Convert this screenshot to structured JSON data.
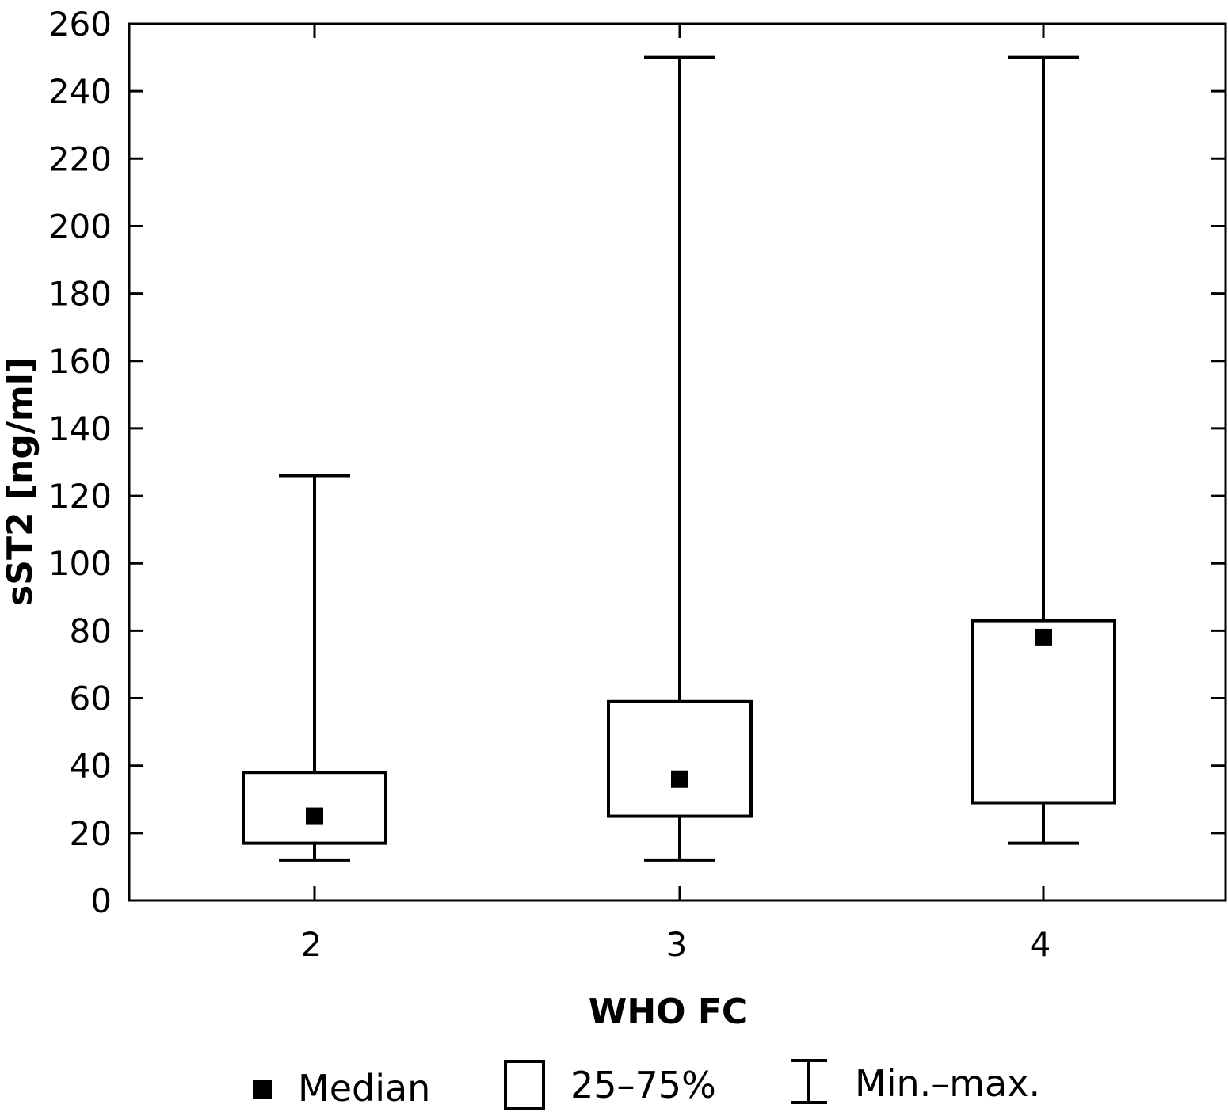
{
  "chart_data": {
    "type": "boxplot",
    "xlabel": "WHO FC",
    "ylabel": "sST2 [ng/ml]",
    "categories": [
      "2",
      "3",
      "4"
    ],
    "ylim": [
      0,
      260
    ],
    "yticks": [
      0,
      20,
      40,
      60,
      80,
      100,
      120,
      140,
      160,
      180,
      200,
      220,
      240,
      260
    ],
    "boxes": [
      {
        "category": "2",
        "min": 12,
        "q1": 17,
        "median": 25,
        "q3": 38,
        "max": 126
      },
      {
        "category": "3",
        "min": 12,
        "q1": 25,
        "median": 36,
        "q3": 59,
        "max": 250
      },
      {
        "category": "4",
        "min": 17,
        "q1": 29,
        "median": 78,
        "q3": 83,
        "max": 250
      }
    ],
    "legend": {
      "median": "Median",
      "box": "25–75%",
      "whisker": "Min.–max."
    },
    "grid": false,
    "legend_position": "bottom"
  }
}
